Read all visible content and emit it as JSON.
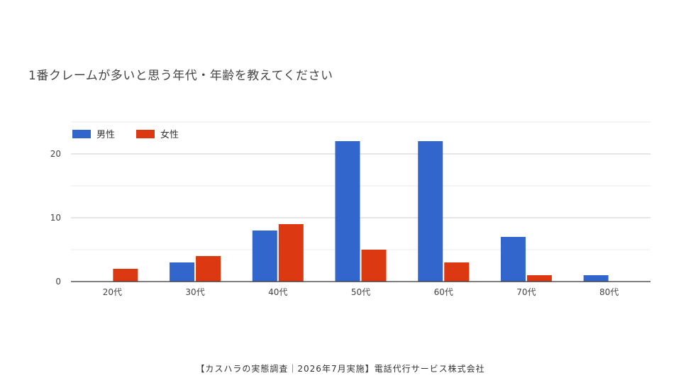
{
  "chart_data": {
    "type": "bar",
    "title": "1番クレームが多いと思う年代・年齢を教えてください",
    "categories": [
      "20代",
      "30代",
      "40代",
      "50代",
      "60代",
      "70代",
      "80代"
    ],
    "series": [
      {
        "name": "男性",
        "color": "#3366cc",
        "values": [
          0,
          3,
          8,
          22,
          22,
          7,
          1
        ]
      },
      {
        "name": "女性",
        "color": "#dc3912",
        "values": [
          2,
          4,
          9,
          5,
          3,
          1,
          0
        ]
      }
    ],
    "yticks": [
      0,
      10,
      20
    ],
    "ylim": [
      0,
      25
    ],
    "grid": true,
    "legend_position": "top-left",
    "xlabel": "",
    "ylabel": ""
  },
  "footer": "【カスハラの実態調査｜2026年7月実施】電話代行サービス株式会社"
}
